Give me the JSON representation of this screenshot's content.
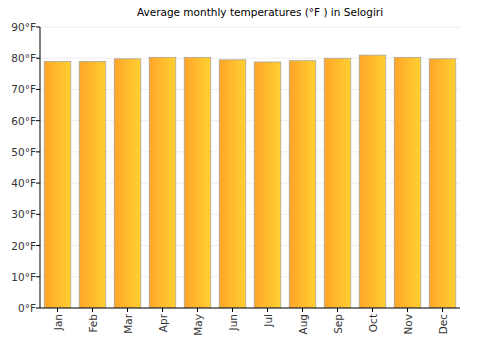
{
  "chart_data": {
    "type": "bar",
    "title": "Average monthly temperatures (°F ) in Selogiri",
    "categories": [
      "Jan",
      "Feb",
      "Mar",
      "Apr",
      "May",
      "Jun",
      "Jul",
      "Aug",
      "Sep",
      "Oct",
      "Nov",
      "Dec"
    ],
    "values": [
      79,
      79,
      79.8,
      80.3,
      80.3,
      79.5,
      78.8,
      79.2,
      80,
      81,
      80.3,
      79.8
    ],
    "color": "#ffa52a",
    "ylim": [
      0,
      90
    ],
    "yticks": [
      {
        "value": 0,
        "label": "0°F"
      },
      {
        "value": 10,
        "label": "10°F"
      },
      {
        "value": 20,
        "label": "20°F"
      },
      {
        "value": 30,
        "label": "30°F"
      },
      {
        "value": 40,
        "label": "40°F"
      },
      {
        "value": 50,
        "label": "50°F"
      },
      {
        "value": 60,
        "label": "60°F"
      },
      {
        "value": 70,
        "label": "70°F"
      },
      {
        "value": 80,
        "label": "80°F"
      },
      {
        "value": 90,
        "label": "90°F"
      }
    ],
    "grid": true
  }
}
